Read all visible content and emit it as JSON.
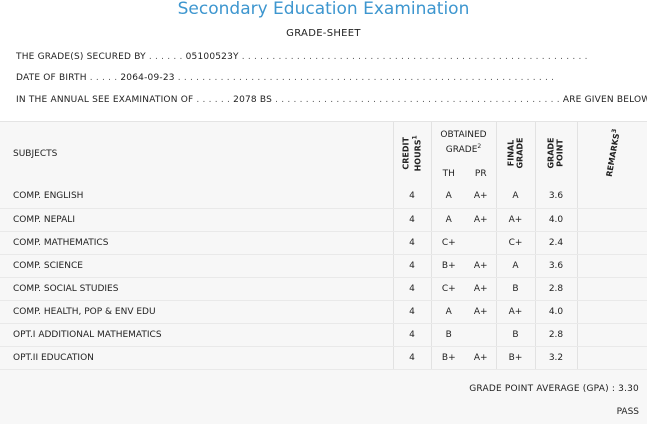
{
  "header": {
    "title": "Secondary Education Examination",
    "subtitle": "GRADE-SHEET"
  },
  "info": {
    "secured_label": "THE GRADE(S) SECURED BY",
    "secured_value": "05100523Y",
    "dob_label": "DATE OF BIRTH",
    "dob_value": "2064-09-23",
    "exam_label": "IN THE ANNUAL SEE EXAMINATION OF",
    "exam_value": "2078 BS",
    "exam_suffix": "ARE GIVEN BELOW . . ."
  },
  "table": {
    "headers": {
      "subjects": "SUBJECTS",
      "credit_hours_1": "CREDIT",
      "credit_hours_2": "HOURS",
      "credit_sup": "1",
      "obtained_1": "OBTAINED",
      "obtained_2": "GRADE",
      "obtained_sup": "2",
      "th": "TH",
      "pr": "PR",
      "final_1": "FINAL",
      "final_2": "GRADE",
      "grade_point_1": "GRADE",
      "grade_point_2": "POINT",
      "remarks": "REMARKS",
      "remarks_sup": "3"
    },
    "rows": [
      {
        "subject": "COMP. ENGLISH",
        "credit": "4",
        "th": "A",
        "pr": "A+",
        "final": "A",
        "gp": "3.6",
        "remarks": ""
      },
      {
        "subject": "COMP. NEPALI",
        "credit": "4",
        "th": "A",
        "pr": "A+",
        "final": "A+",
        "gp": "4.0",
        "remarks": ""
      },
      {
        "subject": "COMP. MATHEMATICS",
        "credit": "4",
        "th": "C+",
        "pr": "",
        "final": "C+",
        "gp": "2.4",
        "remarks": ""
      },
      {
        "subject": "COMP. SCIENCE",
        "credit": "4",
        "th": "B+",
        "pr": "A+",
        "final": "A",
        "gp": "3.6",
        "remarks": ""
      },
      {
        "subject": "COMP. SOCIAL STUDIES",
        "credit": "4",
        "th": "C+",
        "pr": "A+",
        "final": "B",
        "gp": "2.8",
        "remarks": ""
      },
      {
        "subject": "COMP. HEALTH, POP & ENV EDU",
        "credit": "4",
        "th": "A",
        "pr": "A+",
        "final": "A+",
        "gp": "4.0",
        "remarks": ""
      },
      {
        "subject": "OPT.I ADDITIONAL MATHEMATICS",
        "credit": "4",
        "th": "B",
        "pr": "",
        "final": "B",
        "gp": "2.8",
        "remarks": ""
      },
      {
        "subject": "OPT.II EDUCATION",
        "credit": "4",
        "th": "B+",
        "pr": "A+",
        "final": "B+",
        "gp": "3.2",
        "remarks": ""
      }
    ]
  },
  "summary": {
    "gpa_label": "GRADE POINT AVERAGE (GPA) : 3.30",
    "result": "PASS"
  },
  "colors": {
    "title": "#3d96cf",
    "table_bg": "#f7f7f7"
  }
}
